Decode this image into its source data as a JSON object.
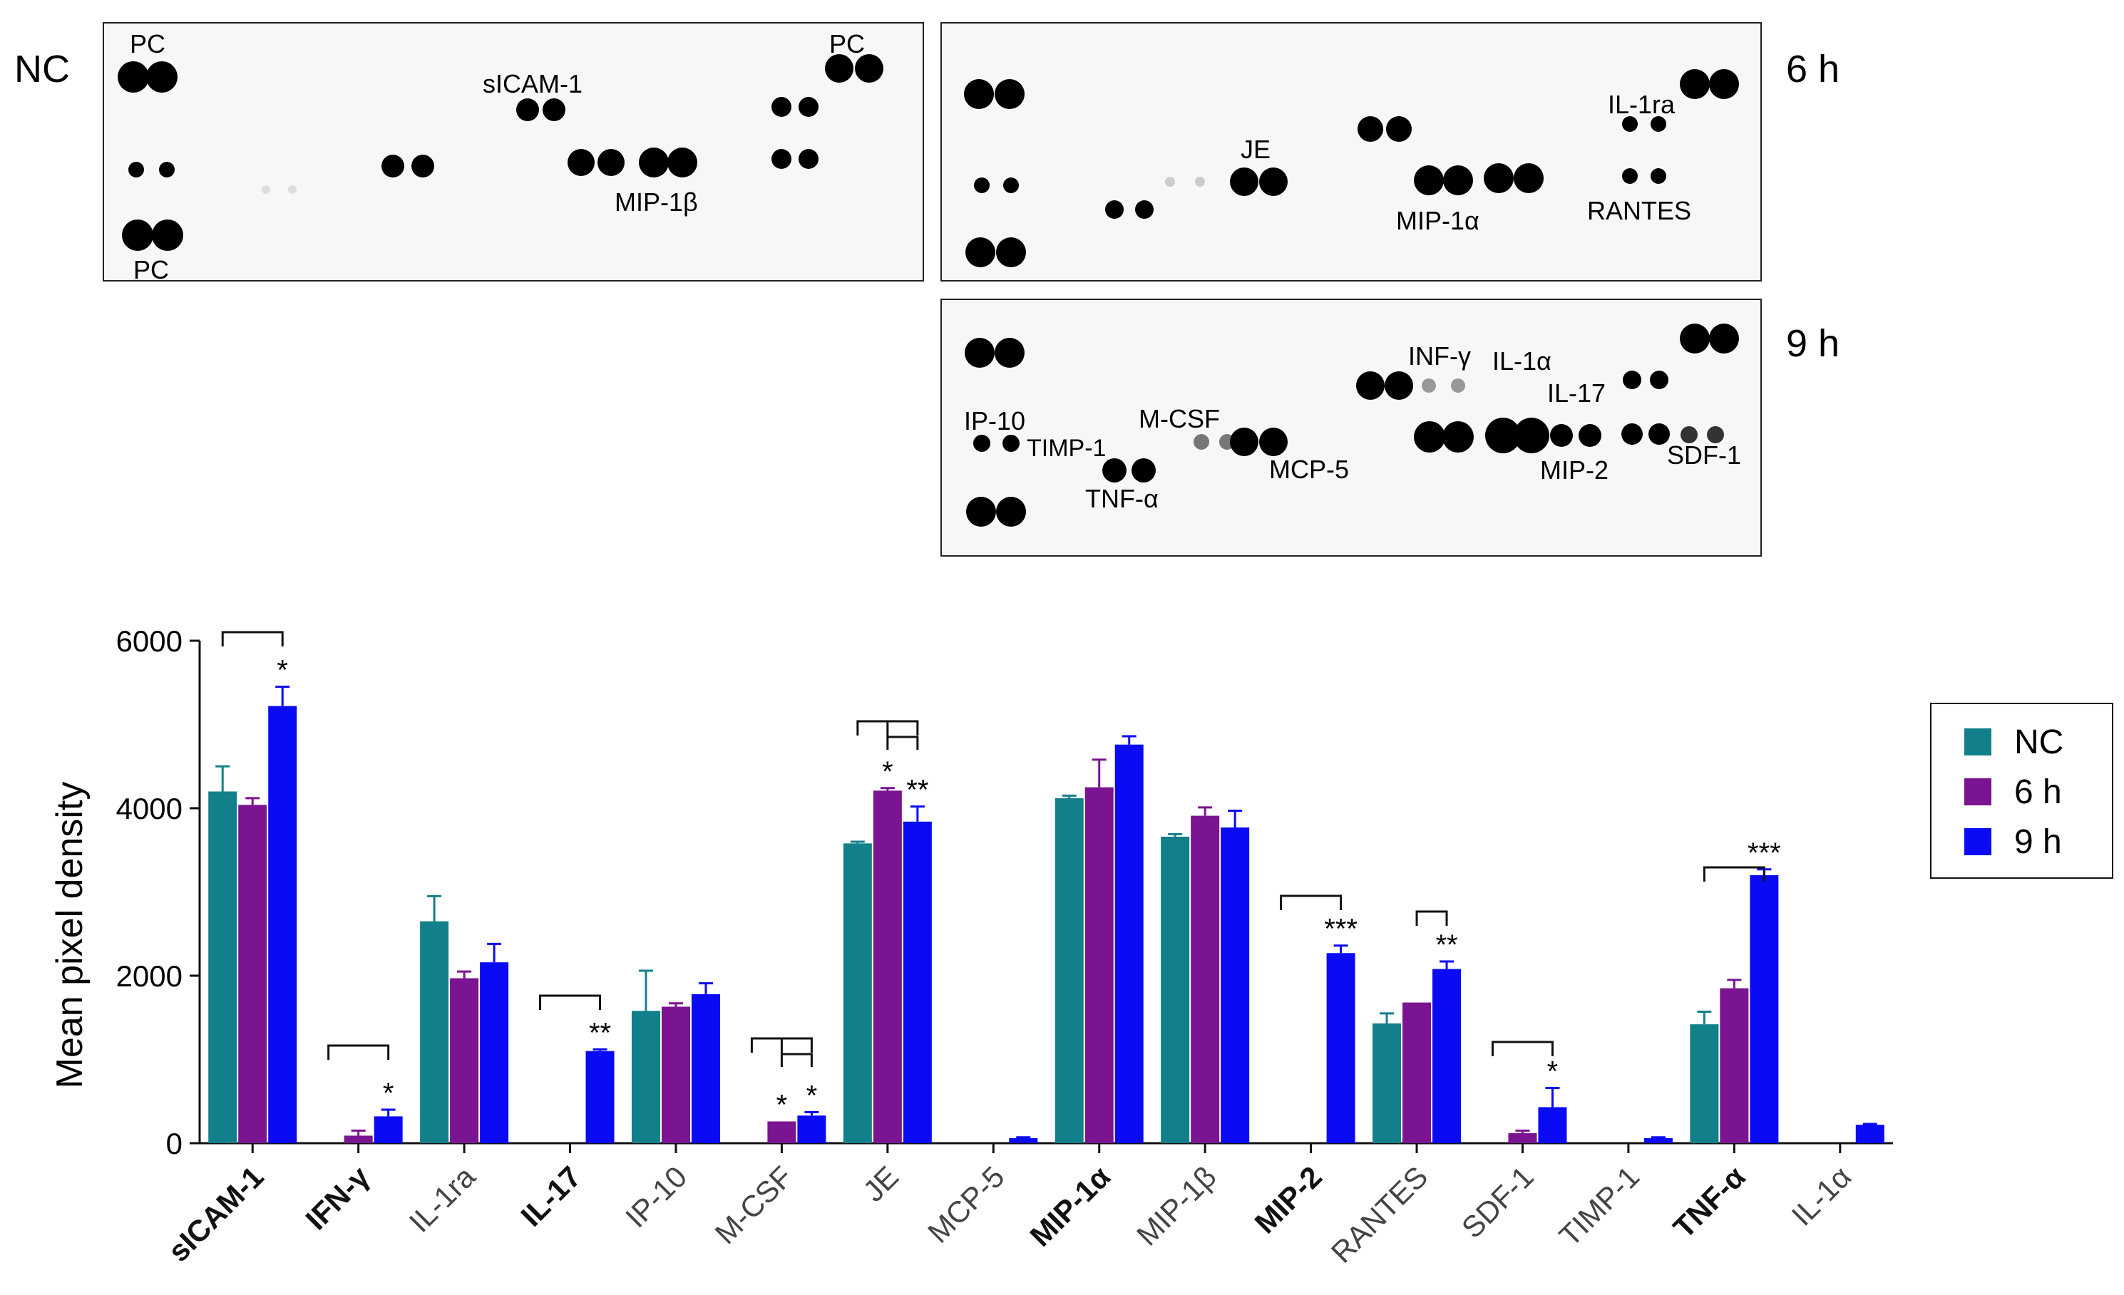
{
  "blots": {
    "nc": {
      "condition": "NC",
      "labels": {
        "pc_top_left": "PC",
        "pc_top_right": "PC",
        "pc_bottom": "PC",
        "sicam": "sICAM-1",
        "mip1b": "MIP-1β"
      }
    },
    "h6": {
      "condition": "6 h",
      "labels": {
        "je": "JE",
        "il1ra": "IL-1ra",
        "mip1a": "MIP-1α",
        "rantes": "RANTES"
      }
    },
    "h9": {
      "condition": "9 h",
      "labels": {
        "infg": "INF-γ",
        "il1a": "IL-1α",
        "il17": "IL-17",
        "ip10": "IP-10",
        "timp1": "TIMP-1",
        "mcsf": "M-CSF",
        "mcp5": "MCP-5",
        "tnfa": "TNF-α",
        "mip2": "MIP-2",
        "sdf1": "SDF-1"
      }
    }
  },
  "chart_data": {
    "type": "bar",
    "ylabel": "Mean pixel density",
    "xlabel": "",
    "ylim": [
      0,
      6000
    ],
    "yticks": [
      0,
      2000,
      4000,
      6000
    ],
    "legend_position": "right",
    "categories": [
      "sICAM-1",
      "IFN-γ",
      "IL-1ra",
      "IL-17",
      "IP-10",
      "M-CSF",
      "JE",
      "MCP-5",
      "MIP-1α",
      "MIP-1β",
      "MIP-2",
      "RANTES",
      "SDF-1",
      "TIMP-1",
      "TNF-α",
      "IL-1α"
    ],
    "bold_categories": [
      "sICAM-1",
      "IFN-γ",
      "IL-17",
      "MIP-1α",
      "MIP-2",
      "TNF-α"
    ],
    "series": [
      {
        "name": "NC",
        "color": "#12808a",
        "values": [
          4200,
          0,
          2650,
          0,
          1580,
          0,
          3580,
          0,
          4120,
          3660,
          0,
          1430,
          0,
          0,
          1420,
          0
        ],
        "errors": [
          300,
          0,
          300,
          0,
          480,
          0,
          20,
          0,
          30,
          30,
          0,
          120,
          0,
          0,
          150,
          0
        ]
      },
      {
        "name": "6 h",
        "color": "#7a1490",
        "values": [
          4040,
          90,
          1970,
          0,
          1630,
          260,
          4210,
          0,
          4250,
          3910,
          0,
          1680,
          120,
          0,
          1850,
          0
        ],
        "errors": [
          80,
          60,
          80,
          0,
          40,
          0,
          30,
          0,
          330,
          100,
          0,
          0,
          30,
          0,
          100,
          0
        ]
      },
      {
        "name": "9 h",
        "color": "#0a0af5",
        "values": [
          5220,
          320,
          2160,
          1100,
          1780,
          330,
          3840,
          60,
          4760,
          3770,
          2270,
          2080,
          430,
          60,
          3200,
          220
        ],
        "errors": [
          230,
          80,
          220,
          20,
          130,
          40,
          180,
          10,
          100,
          200,
          90,
          90,
          230,
          10,
          70,
          10
        ]
      }
    ],
    "significance": [
      {
        "category": "sICAM-1",
        "series": "9 h",
        "label": "*"
      },
      {
        "category": "IFN-γ",
        "series": "9 h",
        "label": "*"
      },
      {
        "category": "IL-17",
        "series": "9 h",
        "label": "**"
      },
      {
        "category": "M-CSF",
        "series": "6 h",
        "label": "*"
      },
      {
        "category": "M-CSF",
        "series": "9 h",
        "label": "*"
      },
      {
        "category": "JE",
        "series": "6 h",
        "label": "*"
      },
      {
        "category": "JE",
        "series": "9 h",
        "label": "**"
      },
      {
        "category": "MIP-2",
        "series": "9 h",
        "label": "***"
      },
      {
        "category": "RANTES",
        "series": "9 h",
        "label": "**"
      },
      {
        "category": "SDF-1",
        "series": "9 h",
        "label": "*"
      },
      {
        "category": "TNF-α",
        "series": "9 h",
        "label": "***"
      }
    ]
  }
}
